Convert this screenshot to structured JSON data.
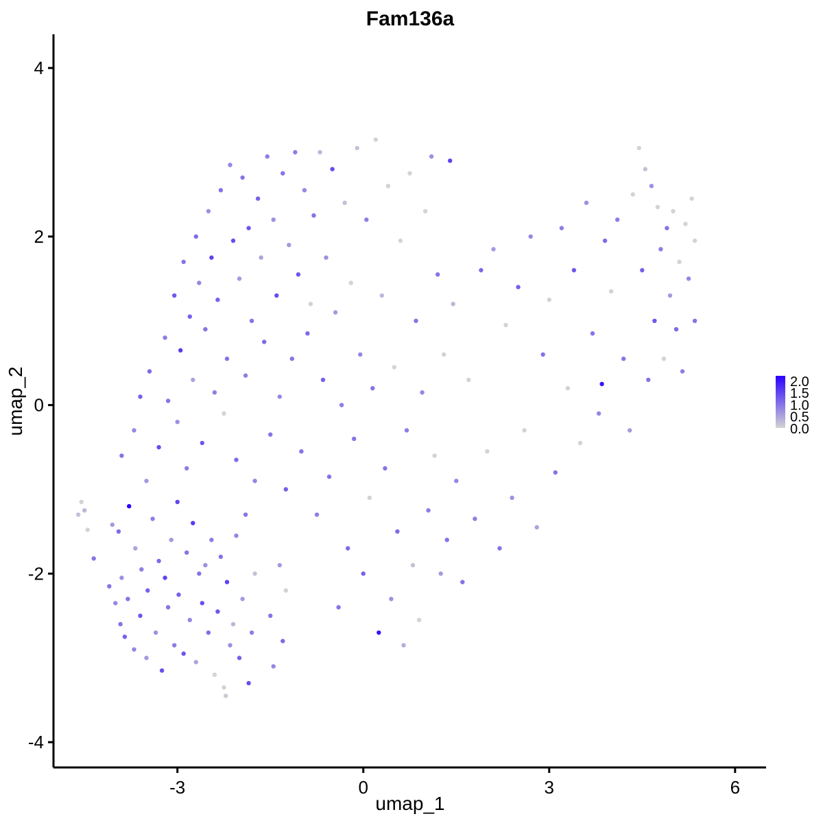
{
  "chart_data": {
    "type": "scatter",
    "title": "Fam136a",
    "xlabel": "umap_1",
    "ylabel": "umap_2",
    "xlim": [
      -5.0,
      6.5
    ],
    "ylim": [
      -4.3,
      4.4
    ],
    "x_ticks": [
      -3,
      0,
      3,
      6
    ],
    "x_tick_labels": [
      "-3",
      "0",
      "3",
      "6"
    ],
    "y_ticks": [
      -4,
      -2,
      0,
      2,
      4
    ],
    "y_tick_labels": [
      "-4",
      "-2",
      "0",
      "2",
      "4"
    ],
    "grid": false,
    "legend": {
      "type": "colorbar",
      "placement": "right",
      "min": 0.0,
      "max": 2.2,
      "ticks": [
        "0.0",
        "0.5",
        "1.0",
        "1.5",
        "2.0"
      ],
      "tick_values": [
        0.0,
        0.5,
        1.0,
        1.5,
        2.0
      ],
      "color_low": "#d3d3d3",
      "color_high": "#2a00ff"
    },
    "points": [
      [
        -4.6,
        -1.3,
        0.2
      ],
      [
        -4.55,
        -1.15,
        0.0
      ],
      [
        -4.5,
        -1.25,
        0.3
      ],
      [
        -4.45,
        -1.48,
        0.0
      ],
      [
        -4.35,
        -1.82,
        1.0
      ],
      [
        -4.1,
        -2.15,
        1.0
      ],
      [
        -4.05,
        -1.42,
        0.6
      ],
      [
        -4.0,
        -2.35,
        0.8
      ],
      [
        -3.95,
        -1.5,
        1.1
      ],
      [
        -3.92,
        -2.6,
        1.0
      ],
      [
        -3.9,
        -2.05,
        0.7
      ],
      [
        -3.85,
        -2.75,
        1.2
      ],
      [
        -3.8,
        -2.3,
        1.0
      ],
      [
        -3.78,
        -1.2,
        2.2
      ],
      [
        -3.7,
        -2.9,
        0.8
      ],
      [
        -3.68,
        -1.7,
        0.5
      ],
      [
        -3.6,
        -2.5,
        1.3
      ],
      [
        -3.58,
        -1.95,
        0.9
      ],
      [
        -3.5,
        -3.0,
        0.6
      ],
      [
        -3.48,
        -2.2,
        1.2
      ],
      [
        -3.4,
        -1.35,
        0.9
      ],
      [
        -3.35,
        -2.7,
        0.7
      ],
      [
        -3.3,
        -1.85,
        1.1
      ],
      [
        -3.25,
        -3.15,
        1.4
      ],
      [
        -3.2,
        -2.05,
        1.5
      ],
      [
        -3.15,
        -2.4,
        1.0
      ],
      [
        -3.1,
        -1.6,
        0.6
      ],
      [
        -3.05,
        -2.85,
        0.9
      ],
      [
        -3.0,
        -1.15,
        1.5
      ],
      [
        -2.98,
        -2.25,
        1.2
      ],
      [
        -2.9,
        -2.95,
        1.3
      ],
      [
        -2.85,
        -1.75,
        1.0
      ],
      [
        -2.8,
        -2.55,
        0.8
      ],
      [
        -2.75,
        -1.4,
        1.6
      ],
      [
        -2.7,
        -3.05,
        0.5
      ],
      [
        -2.65,
        -2.0,
        1.0
      ],
      [
        -2.6,
        -2.35,
        1.4
      ],
      [
        -2.55,
        -1.9,
        0.7
      ],
      [
        -2.5,
        -2.7,
        1.1
      ],
      [
        -2.45,
        -1.6,
        0.9
      ],
      [
        -2.4,
        -3.2,
        0.0
      ],
      [
        -2.35,
        -2.45,
        1.3
      ],
      [
        -2.3,
        -1.8,
        1.0
      ],
      [
        -2.25,
        -3.35,
        0.0
      ],
      [
        -2.22,
        -3.45,
        0.1
      ],
      [
        -2.2,
        -2.1,
        1.5
      ],
      [
        -2.15,
        -2.85,
        0.7
      ],
      [
        -2.1,
        -2.6,
        0.3
      ],
      [
        -2.05,
        -1.55,
        0.8
      ],
      [
        -2.0,
        -3.0,
        1.2
      ],
      [
        -1.95,
        -2.3,
        0.6
      ],
      [
        -1.9,
        -1.3,
        1.0
      ],
      [
        -1.85,
        -3.3,
        1.4
      ],
      [
        -1.8,
        -2.7,
        0.9
      ],
      [
        -1.75,
        -2.0,
        0.2
      ],
      [
        -1.5,
        -2.5,
        1.0
      ],
      [
        -1.45,
        -3.1,
        0.8
      ],
      [
        -1.35,
        -1.9,
        0.6
      ],
      [
        -1.3,
        -2.8,
        1.1
      ],
      [
        -1.25,
        -2.2,
        0.0
      ],
      [
        -3.9,
        -0.6,
        1.0
      ],
      [
        -3.7,
        -0.3,
        0.8
      ],
      [
        -3.6,
        0.1,
        1.2
      ],
      [
        -3.5,
        -0.9,
        0.6
      ],
      [
        -3.45,
        0.4,
        1.1
      ],
      [
        -3.3,
        -0.5,
        1.4
      ],
      [
        -3.2,
        0.8,
        0.9
      ],
      [
        -3.15,
        0.05,
        1.0
      ],
      [
        -3.05,
        1.3,
        1.3
      ],
      [
        -3.0,
        -0.2,
        0.7
      ],
      [
        -2.95,
        0.65,
        1.6
      ],
      [
        -2.9,
        1.7,
        1.0
      ],
      [
        -2.85,
        -0.75,
        0.9
      ],
      [
        -2.8,
        1.05,
        1.2
      ],
      [
        -2.75,
        0.3,
        0.5
      ],
      [
        -2.7,
        2.0,
        1.1
      ],
      [
        -2.65,
        1.45,
        0.8
      ],
      [
        -2.6,
        -0.45,
        1.3
      ],
      [
        -2.55,
        0.9,
        1.0
      ],
      [
        -2.5,
        2.3,
        0.7
      ],
      [
        -2.45,
        1.75,
        1.5
      ],
      [
        -2.4,
        0.15,
        0.9
      ],
      [
        -2.35,
        1.25,
        1.2
      ],
      [
        -2.3,
        2.55,
        1.0
      ],
      [
        -2.25,
        -0.1,
        0.0
      ],
      [
        -2.2,
        0.55,
        1.0
      ],
      [
        -2.15,
        2.85,
        0.8
      ],
      [
        -2.1,
        1.95,
        1.4
      ],
      [
        -2.05,
        -0.65,
        1.1
      ],
      [
        -2.0,
        1.5,
        0.6
      ],
      [
        -1.95,
        2.7,
        1.0
      ],
      [
        -1.9,
        0.35,
        0.9
      ],
      [
        -1.85,
        2.1,
        1.3
      ],
      [
        -1.8,
        1.0,
        1.0
      ],
      [
        -1.75,
        -0.9,
        0.8
      ],
      [
        -1.7,
        2.45,
        1.2
      ],
      [
        -1.65,
        1.75,
        0.5
      ],
      [
        -1.6,
        0.75,
        1.1
      ],
      [
        -1.55,
        2.95,
        0.9
      ],
      [
        -1.5,
        -0.35,
        1.0
      ],
      [
        -1.45,
        2.2,
        0.7
      ],
      [
        -1.4,
        1.3,
        1.4
      ],
      [
        -1.35,
        0.1,
        0.8
      ],
      [
        -1.3,
        2.75,
        1.0
      ],
      [
        -1.25,
        -1.0,
        1.2
      ],
      [
        -1.2,
        1.9,
        0.6
      ],
      [
        -1.15,
        0.55,
        1.0
      ],
      [
        -1.1,
        3.0,
        0.9
      ],
      [
        -1.05,
        1.55,
        1.3
      ],
      [
        -1.0,
        -0.55,
        1.0
      ],
      [
        -0.95,
        2.55,
        0.8
      ],
      [
        -0.9,
        0.85,
        1.1
      ],
      [
        -0.85,
        1.2,
        0.0
      ],
      [
        -0.8,
        2.25,
        1.0
      ],
      [
        -0.75,
        -1.3,
        0.9
      ],
      [
        -0.7,
        3.0,
        0.3
      ],
      [
        -0.65,
        0.3,
        1.2
      ],
      [
        -0.6,
        1.75,
        0.7
      ],
      [
        -0.55,
        -0.85,
        1.0
      ],
      [
        -0.5,
        2.8,
        1.4
      ],
      [
        -0.45,
        1.1,
        0.6
      ],
      [
        -0.4,
        -2.4,
        1.0
      ],
      [
        -0.35,
        0.0,
        0.9
      ],
      [
        -0.3,
        2.4,
        0.2
      ],
      [
        -0.25,
        -1.7,
        1.1
      ],
      [
        -0.2,
        1.45,
        0.0
      ],
      [
        -0.15,
        -0.4,
        1.0
      ],
      [
        -0.1,
        3.05,
        0.2
      ],
      [
        -0.05,
        0.6,
        0.8
      ],
      [
        0.0,
        -2.0,
        1.2
      ],
      [
        0.05,
        2.2,
        0.9
      ],
      [
        0.1,
        -1.1,
        0.0
      ],
      [
        0.15,
        0.2,
        1.0
      ],
      [
        0.2,
        3.15,
        0.0
      ],
      [
        0.25,
        -2.7,
        2.0
      ],
      [
        0.3,
        1.3,
        0.3
      ],
      [
        0.35,
        -0.75,
        1.0
      ],
      [
        0.4,
        2.6,
        0.0
      ],
      [
        0.45,
        -2.3,
        0.7
      ],
      [
        0.5,
        0.45,
        0.0
      ],
      [
        0.55,
        -1.5,
        1.1
      ],
      [
        0.6,
        1.95,
        0.0
      ],
      [
        0.65,
        -2.85,
        0.4
      ],
      [
        0.7,
        -0.3,
        0.9
      ],
      [
        0.75,
        2.75,
        0.0
      ],
      [
        0.8,
        -1.9,
        0.2
      ],
      [
        0.85,
        1.0,
        1.0
      ],
      [
        0.9,
        -2.55,
        0.0
      ],
      [
        0.95,
        0.15,
        0.8
      ],
      [
        1.0,
        2.3,
        0.0
      ],
      [
        1.05,
        -1.25,
        0.9
      ],
      [
        1.1,
        2.95,
        0.7
      ],
      [
        1.15,
        -0.6,
        0.0
      ],
      [
        1.2,
        1.55,
        1.0
      ],
      [
        1.25,
        -2.0,
        0.6
      ],
      [
        1.3,
        0.6,
        0.0
      ],
      [
        1.35,
        -1.6,
        1.0
      ],
      [
        1.4,
        2.9,
        1.5
      ],
      [
        1.45,
        1.2,
        0.3
      ],
      [
        1.5,
        -0.9,
        0.8
      ],
      [
        1.6,
        -2.1,
        1.0
      ],
      [
        1.7,
        0.3,
        0.0
      ],
      [
        1.8,
        -1.35,
        0.9
      ],
      [
        1.9,
        1.6,
        1.1
      ],
      [
        2.0,
        -0.55,
        0.0
      ],
      [
        2.1,
        1.85,
        0.6
      ],
      [
        2.2,
        -1.7,
        1.0
      ],
      [
        2.3,
        0.95,
        0.0
      ],
      [
        2.4,
        -1.1,
        0.7
      ],
      [
        2.5,
        1.4,
        1.2
      ],
      [
        2.6,
        -0.3,
        0.0
      ],
      [
        2.7,
        2.0,
        0.8
      ],
      [
        2.8,
        -1.45,
        0.5
      ],
      [
        2.9,
        0.6,
        1.0
      ],
      [
        3.0,
        1.25,
        0.0
      ],
      [
        3.1,
        -0.8,
        1.0
      ],
      [
        3.2,
        2.1,
        0.9
      ],
      [
        3.3,
        0.2,
        0.0
      ],
      [
        3.4,
        1.6,
        1.3
      ],
      [
        3.5,
        -0.45,
        0.0
      ],
      [
        3.6,
        2.4,
        0.7
      ],
      [
        3.7,
        0.85,
        1.0
      ],
      [
        3.8,
        -0.1,
        0.8
      ],
      [
        3.85,
        0.25,
        2.0
      ],
      [
        3.9,
        1.95,
        1.1
      ],
      [
        4.0,
        1.35,
        0.0
      ],
      [
        4.1,
        2.2,
        0.9
      ],
      [
        4.2,
        0.55,
        1.0
      ],
      [
        4.3,
        -0.3,
        0.6
      ],
      [
        4.35,
        2.5,
        0.0
      ],
      [
        4.45,
        3.05,
        0.0
      ],
      [
        4.5,
        1.6,
        1.2
      ],
      [
        4.55,
        2.8,
        0.2
      ],
      [
        4.6,
        0.3,
        1.0
      ],
      [
        4.65,
        2.6,
        0.7
      ],
      [
        4.7,
        1.0,
        1.3
      ],
      [
        4.75,
        2.35,
        0.0
      ],
      [
        4.8,
        1.85,
        0.9
      ],
      [
        4.85,
        0.55,
        0.0
      ],
      [
        4.9,
        2.1,
        1.0
      ],
      [
        4.95,
        1.3,
        0.6
      ],
      [
        5.0,
        2.3,
        0.0
      ],
      [
        5.05,
        0.9,
        1.1
      ],
      [
        5.1,
        1.7,
        0.0
      ],
      [
        5.15,
        0.4,
        0.9
      ],
      [
        5.2,
        2.15,
        0.0
      ],
      [
        5.25,
        1.5,
        0.8
      ],
      [
        5.3,
        2.45,
        0.0
      ],
      [
        5.35,
        1.0,
        1.0
      ],
      [
        5.35,
        1.95,
        0.0
      ]
    ]
  }
}
